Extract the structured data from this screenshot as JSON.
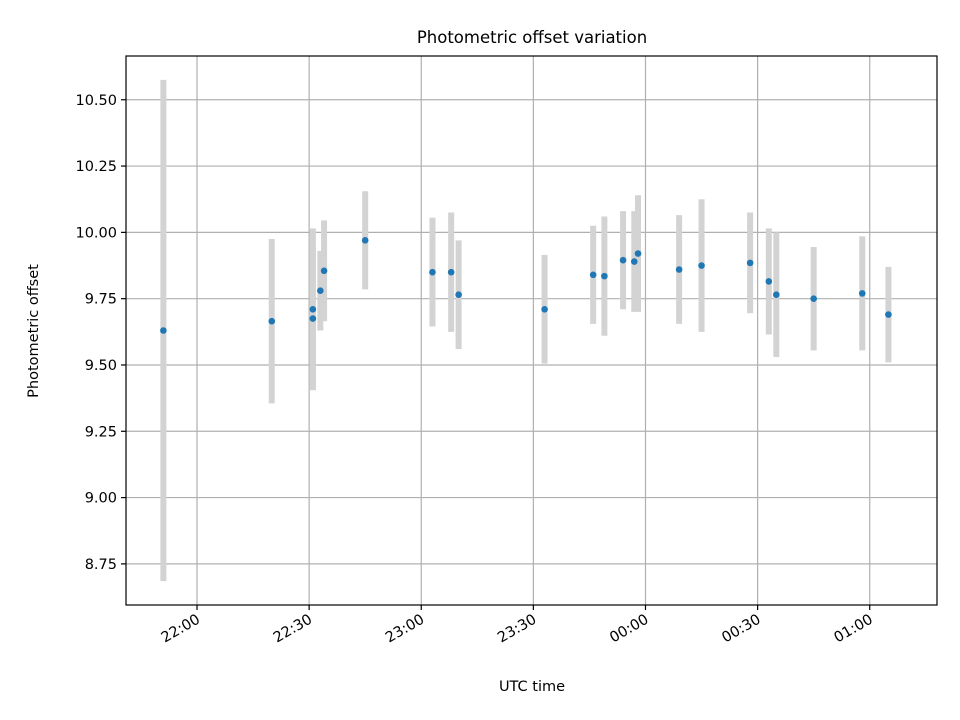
{
  "chart_data": {
    "type": "scatter",
    "title": "Photometric offset variation",
    "xlabel": "UTC time",
    "ylabel": "Photometric offset",
    "x_axis_kind": "time",
    "xlim": [
      "21:41",
      "01:18"
    ],
    "ylim": [
      8.595,
      10.665
    ],
    "grid": true,
    "xticks": [
      {
        "t": "22:00",
        "label": "22:00"
      },
      {
        "t": "22:30",
        "label": "22:30"
      },
      {
        "t": "23:00",
        "label": "23:00"
      },
      {
        "t": "23:30",
        "label": "23:30"
      },
      {
        "t": "00:00",
        "label": "00:00"
      },
      {
        "t": "00:30",
        "label": "00:30"
      },
      {
        "t": "01:00",
        "label": "01:00"
      }
    ],
    "yticks": [
      {
        "v": 8.75,
        "label": "8.75"
      },
      {
        "v": 9.0,
        "label": "9.00"
      },
      {
        "v": 9.25,
        "label": "9.25"
      },
      {
        "v": 9.5,
        "label": "9.50"
      },
      {
        "v": 9.75,
        "label": "9.75"
      },
      {
        "v": 10.0,
        "label": "10.00"
      },
      {
        "v": 10.25,
        "label": "10.25"
      },
      {
        "v": 10.5,
        "label": "10.50"
      }
    ],
    "colors": {
      "point": "#1f77b4",
      "errorbar": "#d3d3d3",
      "grid": "#b0b0b0"
    },
    "points": [
      {
        "t": "21:51",
        "y": 9.63,
        "err": 0.945
      },
      {
        "t": "22:20",
        "y": 9.665,
        "err": 0.31
      },
      {
        "t": "22:31",
        "y": 9.71,
        "err": 0.305
      },
      {
        "t": "22:31",
        "y": 9.675,
        "err": 0.27
      },
      {
        "t": "22:33",
        "y": 9.78,
        "err": 0.15
      },
      {
        "t": "22:34",
        "y": 9.855,
        "err": 0.19
      },
      {
        "t": "22:45",
        "y": 9.97,
        "err": 0.185
      },
      {
        "t": "23:03",
        "y": 9.85,
        "err": 0.205
      },
      {
        "t": "23:08",
        "y": 9.85,
        "err": 0.225
      },
      {
        "t": "23:10",
        "y": 9.765,
        "err": 0.205
      },
      {
        "t": "23:33",
        "y": 9.71,
        "err": 0.205
      },
      {
        "t": "23:46",
        "y": 9.84,
        "err": 0.185
      },
      {
        "t": "23:49",
        "y": 9.835,
        "err": 0.225
      },
      {
        "t": "23:54",
        "y": 9.895,
        "err": 0.185
      },
      {
        "t": "23:57",
        "y": 9.89,
        "err": 0.19
      },
      {
        "t": "23:58",
        "y": 9.92,
        "err": 0.22
      },
      {
        "t": "00:09",
        "y": 9.86,
        "err": 0.205
      },
      {
        "t": "00:15",
        "y": 9.875,
        "err": 0.25
      },
      {
        "t": "00:28",
        "y": 9.885,
        "err": 0.19
      },
      {
        "t": "00:33",
        "y": 9.815,
        "err": 0.2
      },
      {
        "t": "00:35",
        "y": 9.765,
        "err": 0.235
      },
      {
        "t": "00:45",
        "y": 9.75,
        "err": 0.195
      },
      {
        "t": "00:58",
        "y": 9.77,
        "err": 0.215
      },
      {
        "t": "01:05",
        "y": 9.69,
        "err": 0.18
      }
    ]
  }
}
